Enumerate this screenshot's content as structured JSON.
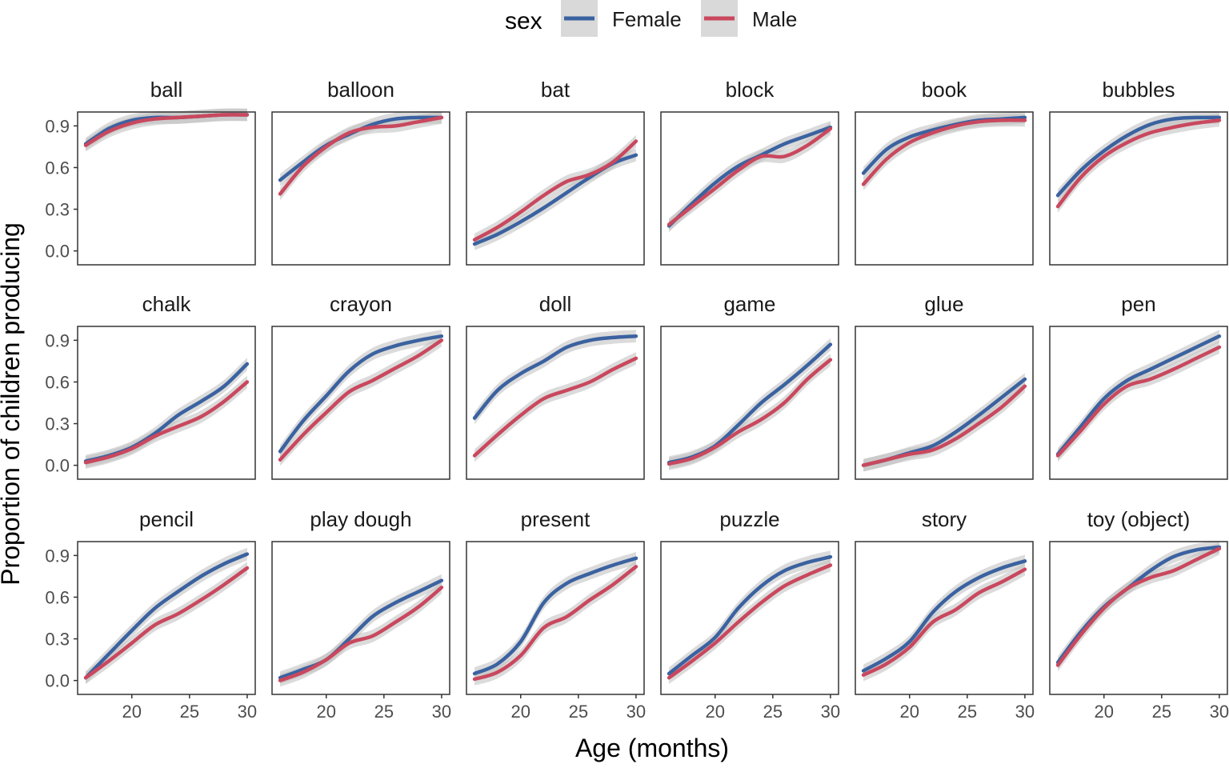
{
  "chart_data": {
    "type": "line",
    "title": "",
    "xlabel": "Age (months)",
    "ylabel": "Proportion of children producing",
    "xlim": [
      16,
      30
    ],
    "ylim": [
      -0.1,
      1.0
    ],
    "xticks": [
      20,
      25,
      30
    ],
    "yticks": [
      0.0,
      0.3,
      0.6,
      0.9
    ],
    "ytick_labels": [
      "0.0",
      "0.3",
      "0.6",
      "0.9"
    ],
    "legend": {
      "title": "sex",
      "position": "top",
      "entries": [
        {
          "name": "Female",
          "color": "#3B62A0"
        },
        {
          "name": "Male",
          "color": "#C9485E"
        }
      ]
    },
    "ribbon_color": "#BDBDBD",
    "x": [
      16,
      18,
      20,
      22,
      24,
      26,
      28,
      30
    ],
    "panels": [
      {
        "label": "ball",
        "series": [
          {
            "name": "Female",
            "values": [
              0.77,
              0.88,
              0.94,
              0.96,
              0.96,
              0.97,
              0.98,
              0.98
            ]
          },
          {
            "name": "Male",
            "values": [
              0.76,
              0.86,
              0.92,
              0.95,
              0.96,
              0.97,
              0.98,
              0.98
            ]
          }
        ]
      },
      {
        "label": "balloon",
        "series": [
          {
            "name": "Female",
            "values": [
              0.51,
              0.64,
              0.76,
              0.84,
              0.91,
              0.95,
              0.96,
              0.96
            ]
          },
          {
            "name": "Male",
            "values": [
              0.41,
              0.61,
              0.75,
              0.85,
              0.89,
              0.9,
              0.93,
              0.96
            ]
          }
        ]
      },
      {
        "label": "bat",
        "series": [
          {
            "name": "Female",
            "values": [
              0.05,
              0.12,
              0.21,
              0.31,
              0.42,
              0.53,
              0.63,
              0.69
            ]
          },
          {
            "name": "Male",
            "values": [
              0.08,
              0.17,
              0.28,
              0.4,
              0.5,
              0.55,
              0.64,
              0.79
            ]
          }
        ]
      },
      {
        "label": "block",
        "series": [
          {
            "name": "Female",
            "values": [
              0.18,
              0.34,
              0.49,
              0.61,
              0.69,
              0.77,
              0.83,
              0.89
            ]
          },
          {
            "name": "Male",
            "values": [
              0.19,
              0.32,
              0.45,
              0.58,
              0.68,
              0.68,
              0.76,
              0.88
            ]
          }
        ]
      },
      {
        "label": "book",
        "series": [
          {
            "name": "Female",
            "values": [
              0.56,
              0.73,
              0.82,
              0.87,
              0.91,
              0.94,
              0.95,
              0.96
            ]
          },
          {
            "name": "Male",
            "values": [
              0.48,
              0.66,
              0.78,
              0.85,
              0.9,
              0.93,
              0.94,
              0.94
            ]
          }
        ]
      },
      {
        "label": "bubbles",
        "series": [
          {
            "name": "Female",
            "values": [
              0.4,
              0.58,
              0.72,
              0.83,
              0.91,
              0.95,
              0.96,
              0.96
            ]
          },
          {
            "name": "Male",
            "values": [
              0.32,
              0.53,
              0.68,
              0.78,
              0.85,
              0.89,
              0.92,
              0.94
            ]
          }
        ]
      },
      {
        "label": "chalk",
        "series": [
          {
            "name": "Female",
            "values": [
              0.03,
              0.07,
              0.13,
              0.23,
              0.36,
              0.46,
              0.57,
              0.73
            ]
          },
          {
            "name": "Male",
            "values": [
              0.02,
              0.06,
              0.12,
              0.21,
              0.28,
              0.35,
              0.46,
              0.6
            ]
          }
        ]
      },
      {
        "label": "crayon",
        "series": [
          {
            "name": "Female",
            "values": [
              0.1,
              0.32,
              0.5,
              0.68,
              0.8,
              0.86,
              0.9,
              0.93
            ]
          },
          {
            "name": "Male",
            "values": [
              0.04,
              0.22,
              0.38,
              0.53,
              0.61,
              0.7,
              0.79,
              0.9
            ]
          }
        ]
      },
      {
        "label": "doll",
        "series": [
          {
            "name": "Female",
            "values": [
              0.34,
              0.54,
              0.66,
              0.75,
              0.85,
              0.9,
              0.92,
              0.93
            ]
          },
          {
            "name": "Male",
            "values": [
              0.07,
              0.22,
              0.36,
              0.48,
              0.54,
              0.6,
              0.69,
              0.77
            ]
          }
        ]
      },
      {
        "label": "game",
        "series": [
          {
            "name": "Female",
            "values": [
              0.02,
              0.06,
              0.14,
              0.29,
              0.45,
              0.58,
              0.72,
              0.87
            ]
          },
          {
            "name": "Male",
            "values": [
              0.01,
              0.05,
              0.13,
              0.24,
              0.33,
              0.45,
              0.62,
              0.76
            ]
          }
        ]
      },
      {
        "label": "glue",
        "series": [
          {
            "name": "Female",
            "values": [
              0.0,
              0.04,
              0.09,
              0.14,
              0.24,
              0.36,
              0.49,
              0.62
            ]
          },
          {
            "name": "Male",
            "values": [
              0.0,
              0.04,
              0.08,
              0.11,
              0.19,
              0.3,
              0.42,
              0.57
            ]
          }
        ]
      },
      {
        "label": "pen",
        "series": [
          {
            "name": "Female",
            "values": [
              0.08,
              0.28,
              0.48,
              0.61,
              0.69,
              0.77,
              0.85,
              0.93
            ]
          },
          {
            "name": "Male",
            "values": [
              0.07,
              0.25,
              0.44,
              0.57,
              0.62,
              0.69,
              0.77,
              0.85
            ]
          }
        ]
      },
      {
        "label": "pencil",
        "series": [
          {
            "name": "Female",
            "values": [
              0.02,
              0.19,
              0.36,
              0.52,
              0.64,
              0.75,
              0.84,
              0.91
            ]
          },
          {
            "name": "Male",
            "values": [
              0.02,
              0.14,
              0.27,
              0.4,
              0.48,
              0.58,
              0.69,
              0.81
            ]
          }
        ]
      },
      {
        "label": "play dough",
        "series": [
          {
            "name": "Female",
            "values": [
              0.02,
              0.08,
              0.15,
              0.3,
              0.46,
              0.56,
              0.64,
              0.72
            ]
          },
          {
            "name": "Male",
            "values": [
              0.0,
              0.06,
              0.15,
              0.27,
              0.32,
              0.42,
              0.53,
              0.67
            ]
          }
        ]
      },
      {
        "label": "present",
        "series": [
          {
            "name": "Female",
            "values": [
              0.05,
              0.12,
              0.28,
              0.56,
              0.7,
              0.77,
              0.83,
              0.88
            ]
          },
          {
            "name": "Male",
            "values": [
              0.01,
              0.06,
              0.18,
              0.38,
              0.46,
              0.58,
              0.69,
              0.82
            ]
          }
        ]
      },
      {
        "label": "puzzle",
        "series": [
          {
            "name": "Female",
            "values": [
              0.05,
              0.18,
              0.31,
              0.52,
              0.68,
              0.79,
              0.85,
              0.89
            ]
          },
          {
            "name": "Male",
            "values": [
              0.02,
              0.14,
              0.27,
              0.42,
              0.56,
              0.68,
              0.76,
              0.83
            ]
          }
        ]
      },
      {
        "label": "story",
        "series": [
          {
            "name": "Female",
            "values": [
              0.07,
              0.16,
              0.28,
              0.49,
              0.64,
              0.74,
              0.81,
              0.86
            ]
          },
          {
            "name": "Male",
            "values": [
              0.04,
              0.12,
              0.24,
              0.42,
              0.51,
              0.63,
              0.71,
              0.8
            ]
          }
        ]
      },
      {
        "label": "toy (object)",
        "series": [
          {
            "name": "Female",
            "values": [
              0.13,
              0.35,
              0.53,
              0.66,
              0.79,
              0.89,
              0.94,
              0.96
            ]
          },
          {
            "name": "Male",
            "values": [
              0.11,
              0.33,
              0.52,
              0.66,
              0.74,
              0.79,
              0.87,
              0.95
            ]
          }
        ]
      }
    ]
  }
}
